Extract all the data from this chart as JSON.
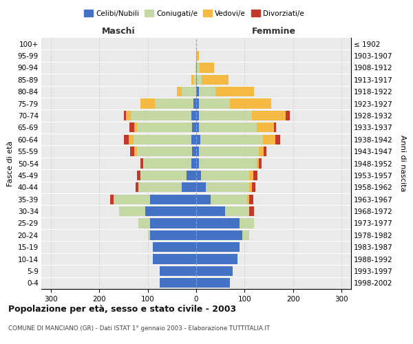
{
  "age_groups": [
    "0-4",
    "5-9",
    "10-14",
    "15-19",
    "20-24",
    "25-29",
    "30-34",
    "35-39",
    "40-44",
    "45-49",
    "50-54",
    "55-59",
    "60-64",
    "65-69",
    "70-74",
    "75-79",
    "80-84",
    "85-89",
    "90-94",
    "95-99",
    "100+"
  ],
  "birth_years": [
    "1998-2002",
    "1993-1997",
    "1988-1992",
    "1983-1987",
    "1978-1982",
    "1973-1977",
    "1968-1972",
    "1963-1967",
    "1958-1962",
    "1953-1957",
    "1948-1952",
    "1943-1947",
    "1938-1942",
    "1933-1937",
    "1928-1932",
    "1923-1927",
    "1918-1922",
    "1913-1917",
    "1908-1912",
    "1903-1907",
    "≤ 1902"
  ],
  "male": {
    "celibi": [
      75,
      75,
      90,
      90,
      95,
      95,
      105,
      95,
      30,
      20,
      10,
      8,
      10,
      8,
      10,
      5,
      0,
      0,
      0,
      0,
      0
    ],
    "coniugati": [
      0,
      0,
      0,
      0,
      5,
      25,
      55,
      75,
      90,
      95,
      100,
      115,
      120,
      115,
      125,
      80,
      30,
      5,
      2,
      0,
      0
    ],
    "vedovi": [
      0,
      0,
      0,
      0,
      0,
      0,
      0,
      0,
      0,
      0,
      0,
      5,
      10,
      5,
      10,
      30,
      10,
      5,
      0,
      0,
      0
    ],
    "divorziati": [
      0,
      0,
      0,
      0,
      0,
      0,
      0,
      8,
      5,
      8,
      5,
      8,
      10,
      10,
      5,
      0,
      0,
      0,
      0,
      0,
      0
    ]
  },
  "female": {
    "nubili": [
      70,
      75,
      85,
      90,
      95,
      90,
      60,
      30,
      20,
      10,
      5,
      5,
      8,
      5,
      5,
      5,
      5,
      2,
      2,
      0,
      0
    ],
    "coniugate": [
      0,
      0,
      0,
      0,
      15,
      30,
      50,
      75,
      90,
      100,
      120,
      125,
      130,
      120,
      110,
      65,
      35,
      10,
      5,
      0,
      0
    ],
    "vedove": [
      0,
      0,
      0,
      0,
      0,
      0,
      0,
      5,
      5,
      8,
      5,
      10,
      25,
      35,
      70,
      85,
      80,
      55,
      30,
      5,
      0
    ],
    "divorziate": [
      0,
      0,
      0,
      0,
      0,
      0,
      10,
      8,
      8,
      8,
      5,
      5,
      10,
      5,
      8,
      0,
      0,
      0,
      0,
      0,
      0
    ]
  },
  "colors": {
    "celibi": "#4472c4",
    "coniugati": "#c5d8a4",
    "vedovi": "#f4b942",
    "divorziati": "#c0392b"
  },
  "title": "Popolazione per età, sesso e stato civile - 2003",
  "subtitle": "COMUNE DI MANCIANO (GR) - Dati ISTAT 1° gennaio 2003 - Elaborazione TUTTITALIA.IT",
  "xlabel_left": "Maschi",
  "xlabel_right": "Femmine",
  "ylabel_left": "Fasce di età",
  "ylabel_right": "Anni di nascita",
  "xlim": 320,
  "legend_labels": [
    "Celibi/Nubili",
    "Coniugati/e",
    "Vedovi/e",
    "Divorziati/e"
  ],
  "bg_color": "#eaeaea"
}
